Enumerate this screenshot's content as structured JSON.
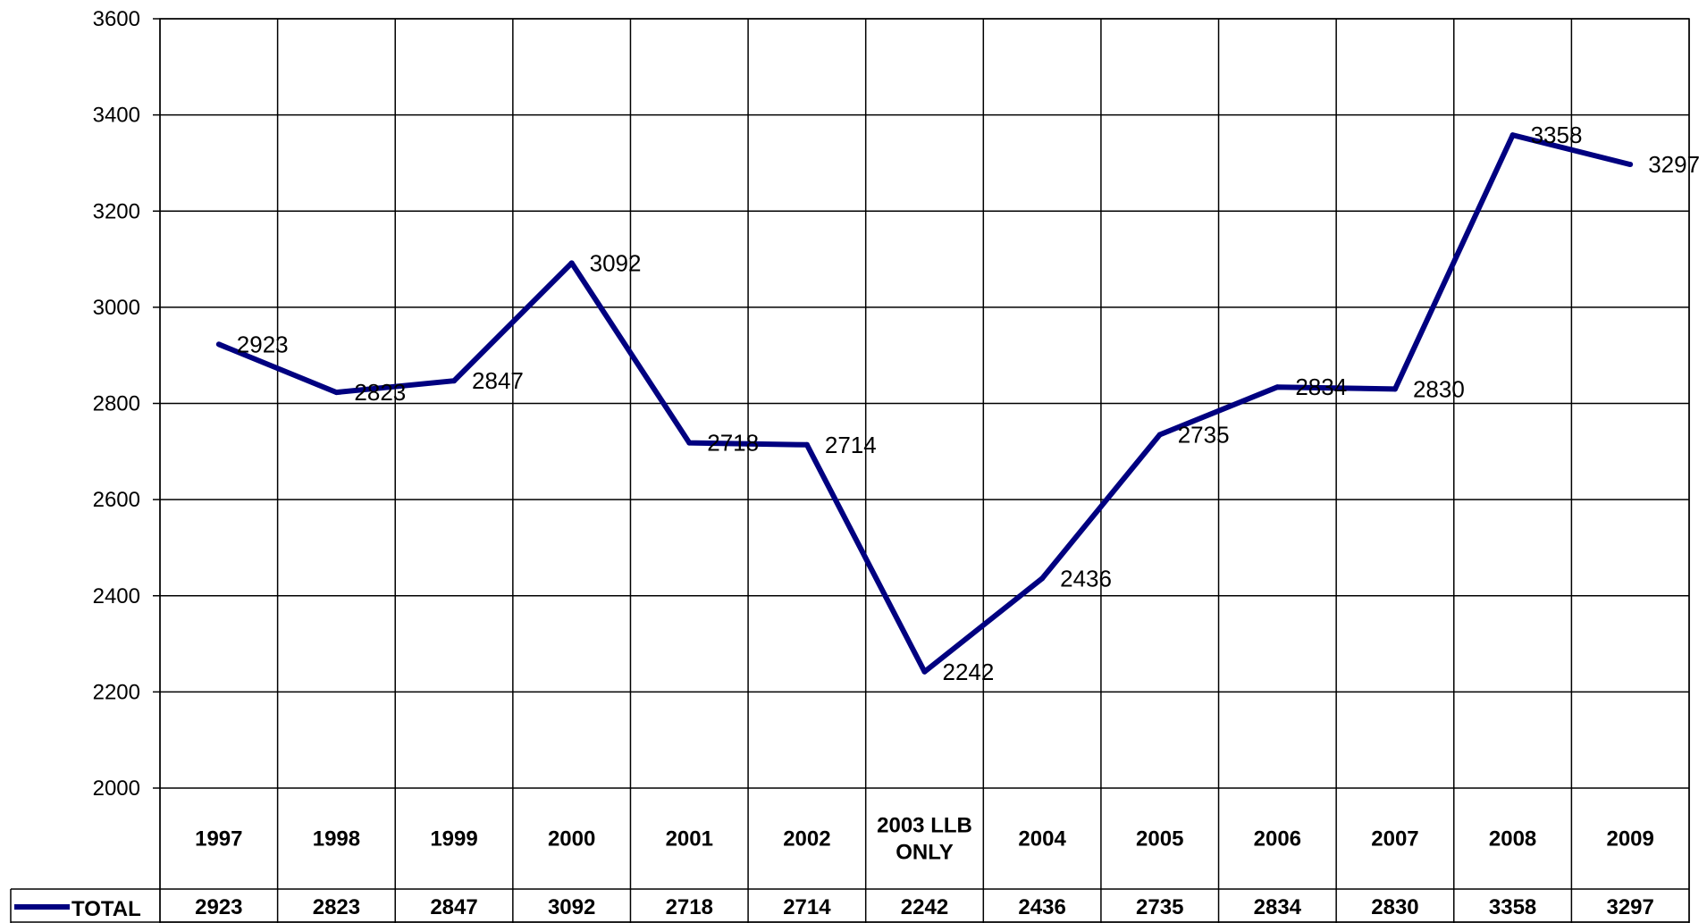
{
  "chart_data": {
    "type": "line",
    "categories": [
      "1997",
      "1998",
      "1999",
      "2000",
      "2001",
      "2002",
      "2003 LLB ONLY",
      "2004",
      "2005",
      "2006",
      "2007",
      "2008",
      "2009"
    ],
    "category_lines": [
      [
        "1997"
      ],
      [
        "1998"
      ],
      [
        "1999"
      ],
      [
        "2000"
      ],
      [
        "2001"
      ],
      [
        "2002"
      ],
      [
        "2003 LLB",
        "ONLY"
      ],
      [
        "2004"
      ],
      [
        "2005"
      ],
      [
        "2006"
      ],
      [
        "2007"
      ],
      [
        "2008"
      ],
      [
        "2009"
      ]
    ],
    "series": [
      {
        "name": "TOTAL",
        "color": "#000080",
        "values": [
          2923,
          2823,
          2847,
          3092,
          2718,
          2714,
          2242,
          2436,
          2735,
          2834,
          2830,
          3358,
          3297
        ]
      }
    ],
    "ylim": [
      2000,
      3600
    ],
    "yticks": [
      2000,
      2200,
      2400,
      2600,
      2800,
      3000,
      3200,
      3400,
      3600
    ],
    "grid": true,
    "data_labels": true,
    "data_table": true,
    "legend": "data-table-left",
    "title": "",
    "xlabel": "",
    "ylabel": ""
  }
}
